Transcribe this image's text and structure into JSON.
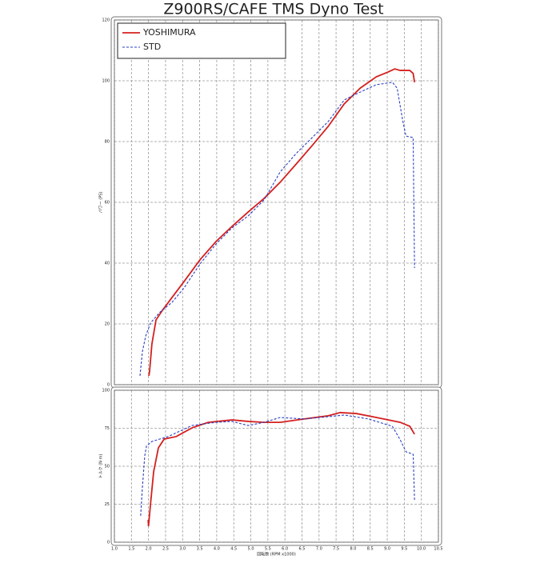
{
  "chart_data": [
    {
      "type": "line",
      "title": "Z900RS/CAFE TMS Dyno Test",
      "y_label": "パワー (PS)",
      "xlim": [
        1,
        10.5
      ],
      "ylim": [
        0,
        120
      ],
      "yticks": [
        0,
        20,
        40,
        60,
        80,
        100,
        120
      ],
      "grid": true,
      "legend": "top-left",
      "series": [
        {
          "name": "YOSHIMURA",
          "color": "#d42020",
          "dash": false,
          "x": [
            2.01,
            2.03,
            2.1,
            2.22,
            2.41,
            2.69,
            3.04,
            3.51,
            3.98,
            4.45,
            4.92,
            5.39,
            5.86,
            6.33,
            6.8,
            7.27,
            7.74,
            8.21,
            8.68,
            9.03,
            9.22,
            9.38,
            9.66,
            9.76,
            9.8
          ],
          "values": [
            2.9,
            4.2,
            13.4,
            21.3,
            24.5,
            28.7,
            33.9,
            41.1,
            47.1,
            52.1,
            56.8,
            61.3,
            66.6,
            72.6,
            78.7,
            85,
            92.4,
            97.6,
            101.3,
            102.9,
            103.9,
            103.4,
            103.4,
            102.4,
            99.5
          ]
        },
        {
          "name": "STD",
          "color": "#2a3fc0",
          "dash": true,
          "x": [
            1.75,
            1.82,
            1.92,
            2.06,
            2.34,
            2.69,
            3.04,
            3.51,
            3.98,
            4.45,
            4.92,
            5.39,
            5.86,
            6.33,
            6.8,
            7.27,
            7.74,
            8.21,
            8.68,
            9.15,
            9.29,
            9.45,
            9.55,
            9.76,
            9.8
          ],
          "values": [
            2.9,
            10.8,
            16.1,
            20.3,
            23.9,
            27.1,
            31.8,
            39.7,
            46.3,
            51.6,
            55.5,
            60.8,
            70,
            76.1,
            81.3,
            86.6,
            93.7,
            96.3,
            98.7,
            99.5,
            97.6,
            87.1,
            81.8,
            81.3,
            38.4
          ]
        }
      ]
    },
    {
      "type": "line",
      "y_label": "トルク (N·m)",
      "x_label": "回転数 (RPM x1000)",
      "xlim": [
        1,
        10.5
      ],
      "ylim": [
        0,
        100
      ],
      "yticks": [
        0,
        25,
        50,
        75,
        100
      ],
      "grid": true,
      "xticks": [
        {
          "value": 1,
          "label": "1.0"
        },
        {
          "value": 1.5,
          "label": "1.5"
        },
        {
          "value": 2,
          "label": "2.0"
        },
        {
          "value": 2.5,
          "label": "2.5"
        },
        {
          "value": 3,
          "label": "3.0"
        },
        {
          "value": 3.5,
          "label": "3.5"
        },
        {
          "value": 4,
          "label": "4.0"
        },
        {
          "value": 4.5,
          "label": "4.5"
        },
        {
          "value": 5,
          "label": "5.0"
        },
        {
          "value": 5.5,
          "label": "5.5"
        },
        {
          "value": 6,
          "label": "6.0"
        },
        {
          "value": 6.5,
          "label": "6.5"
        },
        {
          "value": 7,
          "label": "7.0"
        },
        {
          "value": 7.5,
          "label": "7.5"
        },
        {
          "value": 8,
          "label": "8.0"
        },
        {
          "value": 8.5,
          "label": "8.5"
        },
        {
          "value": 9,
          "label": "9.0"
        },
        {
          "value": 9.5,
          "label": "9.5"
        },
        {
          "value": 10,
          "label": "10.0"
        },
        {
          "value": 10.5,
          "label": "10.5"
        }
      ],
      "series": [
        {
          "color": "#d42020",
          "dash": false,
          "x": [
            1.99,
            2,
            2.06,
            2.15,
            2.29,
            2.46,
            2.81,
            3.28,
            3.75,
            4.45,
            4.92,
            5.39,
            5.86,
            6.56,
            7.27,
            7.62,
            8.09,
            8.68,
            9.38,
            9.66,
            9.8
          ],
          "values": [
            14.7,
            10.5,
            25.3,
            46.3,
            62.1,
            67.9,
            69.5,
            75.3,
            78.9,
            80.5,
            79.5,
            78.9,
            78.9,
            81.1,
            83.2,
            85.3,
            84.7,
            82.1,
            78.9,
            76.3,
            71.1
          ]
        },
        {
          "color": "#2a3fc0",
          "dash": true,
          "x": [
            1.77,
            1.82,
            1.89,
            1.94,
            2.1,
            2.57,
            3.28,
            3.98,
            4.45,
            4.92,
            5.39,
            5.86,
            6.56,
            7.27,
            7.74,
            8.45,
            9.15,
            9.38,
            9.55,
            9.76,
            9.8
          ],
          "values": [
            17.4,
            35.8,
            56.8,
            63.2,
            66.3,
            69.5,
            76.8,
            78.9,
            79.5,
            76.8,
            78.9,
            82.1,
            81.1,
            82.6,
            83.7,
            81.1,
            76.3,
            67.4,
            59.5,
            57.9,
            27.9
          ]
        }
      ]
    }
  ]
}
